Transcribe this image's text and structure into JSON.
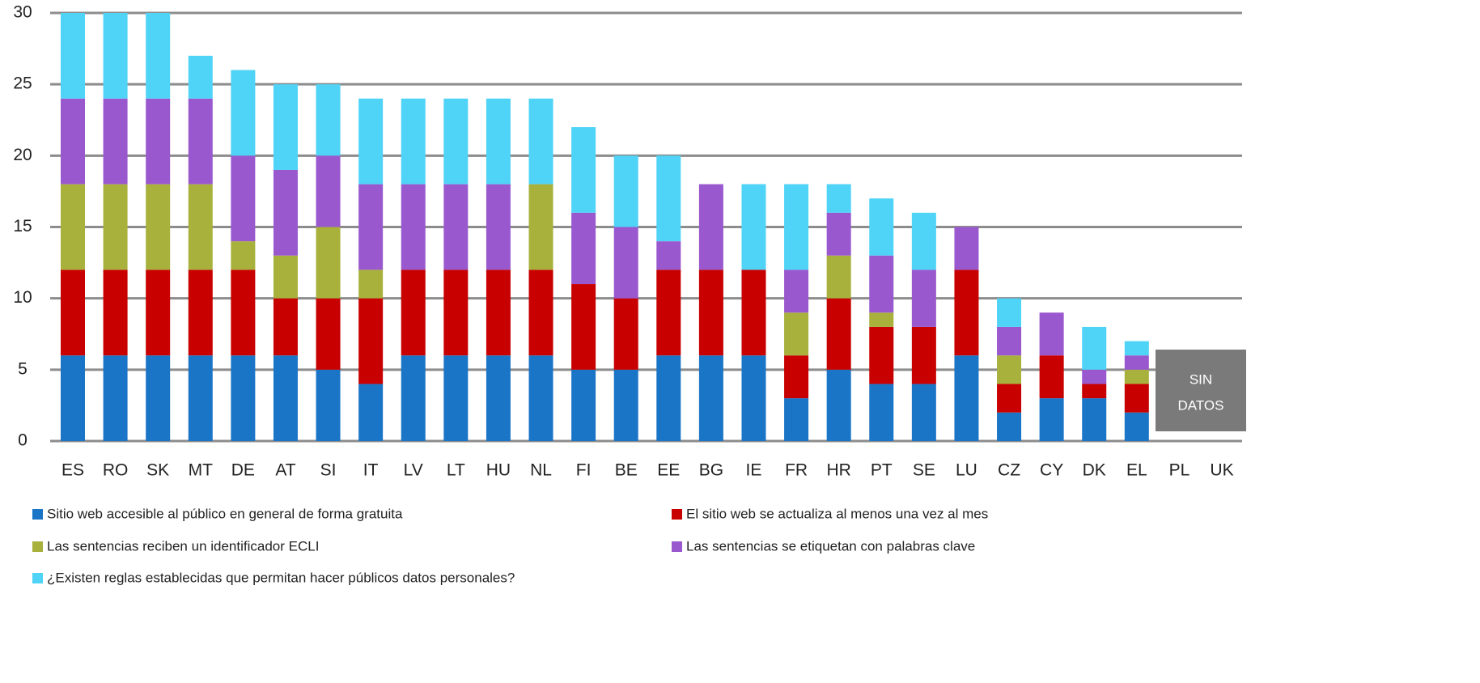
{
  "chart_data": {
    "type": "bar",
    "stacked": true,
    "categories": [
      "ES",
      "RO",
      "SK",
      "MT",
      "DE",
      "AT",
      "SI",
      "IT",
      "LV",
      "LT",
      "HU",
      "NL",
      "FI",
      "BE",
      "EE",
      "BG",
      "IE",
      "FR",
      "HR",
      "PT",
      "SE",
      "LU",
      "CZ",
      "CY",
      "DK",
      "EL",
      "PL",
      "UK"
    ],
    "series": [
      {
        "name": "Sitio web accesible al público en general de forma gratuita",
        "color": "#1b75c6",
        "values": [
          6,
          6,
          6,
          6,
          6,
          6,
          5,
          4,
          6,
          6,
          6,
          6,
          5,
          5,
          6,
          6,
          6,
          3,
          5,
          4,
          4,
          6,
          2,
          3,
          3,
          2,
          null,
          null
        ]
      },
      {
        "name": "El sitio web se actualiza al menos una vez al mes",
        "color": "#c80000",
        "values": [
          6,
          6,
          6,
          6,
          6,
          4,
          5,
          6,
          6,
          6,
          6,
          6,
          6,
          5,
          6,
          6,
          6,
          3,
          5,
          4,
          4,
          6,
          2,
          3,
          1,
          2,
          null,
          null
        ]
      },
      {
        "name": "Las sentencias reciben un identificador ECLI",
        "color": "#a8b13c",
        "values": [
          6,
          6,
          6,
          6,
          2,
          3,
          5,
          2,
          0,
          0,
          0,
          6,
          0,
          0,
          0,
          0,
          0,
          3,
          3,
          1,
          0,
          0,
          2,
          0,
          0,
          1,
          null,
          null
        ]
      },
      {
        "name": "Las sentencias se etiquetan con palabras clave",
        "color": "#9a58cf",
        "values": [
          6,
          6,
          6,
          6,
          6,
          6,
          5,
          6,
          6,
          6,
          6,
          0,
          5,
          5,
          2,
          6,
          0,
          3,
          3,
          4,
          4,
          3,
          2,
          3,
          1,
          1,
          null,
          null
        ]
      },
      {
        "name": "¿Existen reglas establecidas que permitan hacer públicos datos personales?",
        "color": "#4fd3f7",
        "values": [
          6,
          6,
          6,
          3,
          6,
          6,
          5,
          6,
          6,
          6,
          6,
          6,
          6,
          5,
          6,
          0,
          6,
          6,
          2,
          4,
          4,
          0,
          2,
          0,
          3,
          1,
          null,
          null
        ]
      }
    ],
    "ylim": [
      0,
      30
    ],
    "yticks": [
      0,
      5,
      10,
      15,
      20,
      25,
      30
    ],
    "grid": true,
    "annotation": [
      "SIN",
      "DATOS"
    ]
  }
}
